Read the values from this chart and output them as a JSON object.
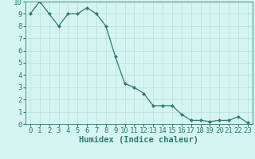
{
  "x": [
    0,
    1,
    2,
    3,
    4,
    5,
    6,
    7,
    8,
    9,
    10,
    11,
    12,
    13,
    14,
    15,
    16,
    17,
    18,
    19,
    20,
    21,
    22,
    23
  ],
  "y": [
    9,
    10,
    9,
    8,
    9,
    9,
    9.5,
    9,
    8,
    5.5,
    3.3,
    3.0,
    2.5,
    1.5,
    1.5,
    1.5,
    0.8,
    0.3,
    0.3,
    0.2,
    0.3,
    0.3,
    0.6,
    0.1
  ],
  "line_color": "#2e7d6e",
  "marker": "D",
  "marker_size": 2,
  "background_color": "#d5f5f0",
  "grid_color": "#b8e0da",
  "xlabel": "Humidex (Indice chaleur)",
  "xlim": [
    -0.5,
    23.5
  ],
  "ylim": [
    0,
    10
  ],
  "xticks": [
    0,
    1,
    2,
    3,
    4,
    5,
    6,
    7,
    8,
    9,
    10,
    11,
    12,
    13,
    14,
    15,
    16,
    17,
    18,
    19,
    20,
    21,
    22,
    23
  ],
  "yticks": [
    0,
    1,
    2,
    3,
    4,
    5,
    6,
    7,
    8,
    9,
    10
  ],
  "tick_label_color": "#2e7d6e",
  "axis_color": "#2e7d6e",
  "xlabel_fontsize": 7.5,
  "tick_fontsize": 6.5
}
